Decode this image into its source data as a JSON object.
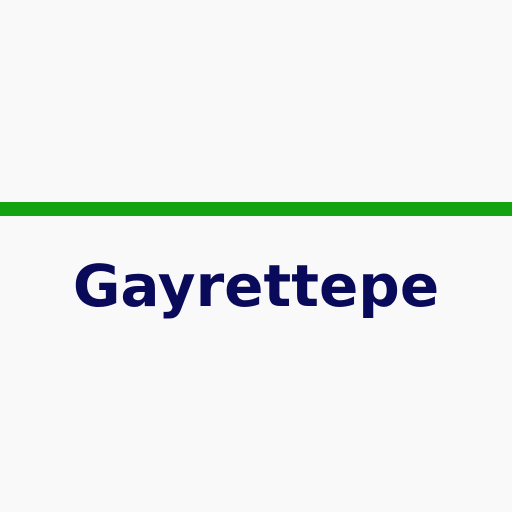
{
  "station": {
    "name": "Gayrettepe"
  },
  "colors": {
    "background": "#f9f9f9",
    "line_stripe": "#12a30f",
    "text": "#0a0a5a"
  }
}
